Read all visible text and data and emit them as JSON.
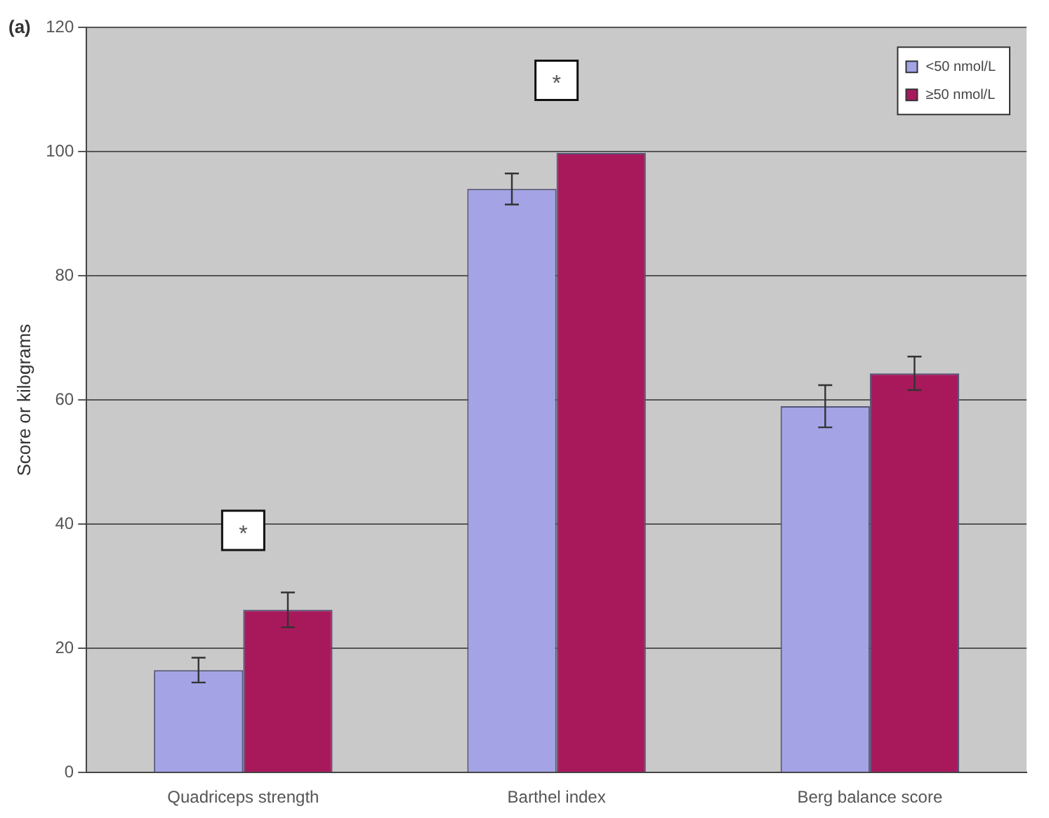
{
  "chart_data": {
    "type": "bar",
    "title": "(a)",
    "ylabel": "Score or kilograms",
    "categories": [
      "Quadriceps strength",
      "Barthel index",
      "Berg balance score"
    ],
    "series": [
      {
        "name": "<50 nmol/L",
        "color": "#a3a3e6",
        "values": [
          16.5,
          94,
          59
        ],
        "errors": [
          2,
          2.5,
          3.4
        ]
      },
      {
        "name": "≥50 nmol/L",
        "color": "#a8195c",
        "values": [
          26.2,
          99.8,
          64.3
        ],
        "errors": [
          2.8,
          null,
          2.7
        ]
      }
    ],
    "ylim": [
      0,
      120
    ],
    "yticks": [
      0,
      20,
      40,
      60,
      80,
      100,
      120
    ],
    "grid": "y",
    "legend": "top right",
    "annotations": [
      {
        "text": "*",
        "x": "Quadriceps strength",
        "y": 39
      },
      {
        "text": "*",
        "x": "Barthel index",
        "y": 111.5
      }
    ]
  }
}
